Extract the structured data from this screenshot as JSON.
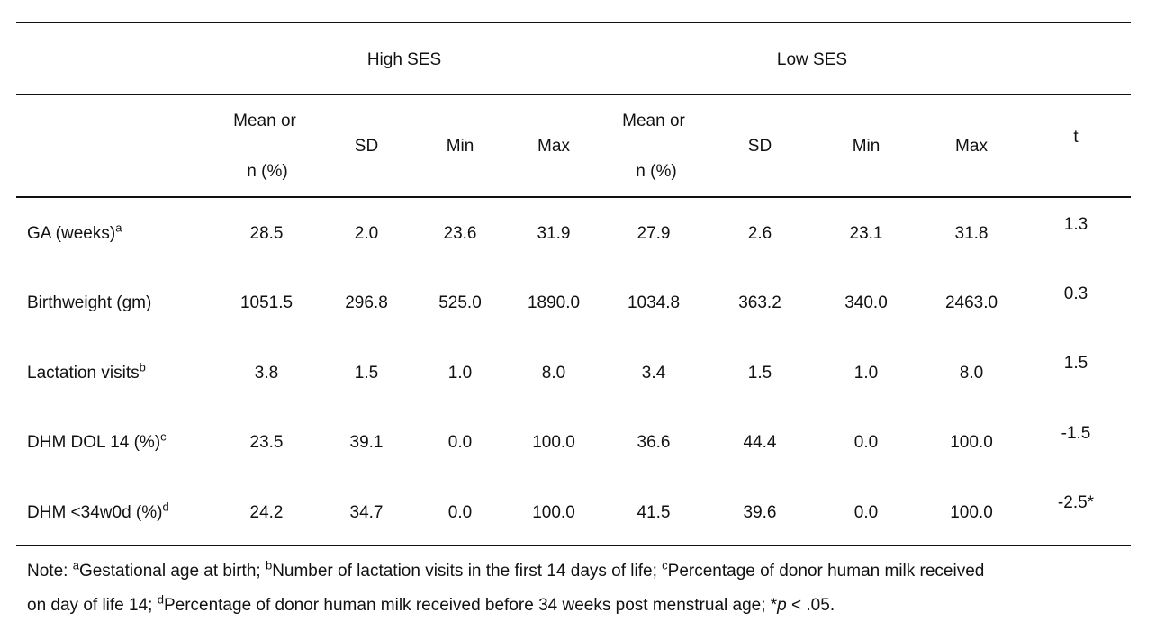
{
  "groups": {
    "high": "High SES",
    "low": "Low SES"
  },
  "subheaders": {
    "mean_line1": "Mean or",
    "mean_line2": "n (%)",
    "sd": "SD",
    "min": "Min",
    "max": "Max",
    "t": "t"
  },
  "rows": [
    {
      "label": "GA (weeks)",
      "sup": "a",
      "values": [
        "28.5",
        "2.0",
        "23.6",
        "31.9",
        "27.9",
        "2.6",
        "23.1",
        "31.8"
      ],
      "t": "1.3"
    },
    {
      "label": "Birthweight (gm)",
      "sup": "",
      "values": [
        "1051.5",
        "296.8",
        "525.0",
        "1890.0",
        "1034.8",
        "363.2",
        "340.0",
        "2463.0"
      ],
      "t": "0.3"
    },
    {
      "label": "Lactation visits",
      "sup": "b",
      "values": [
        "3.8",
        "1.5",
        "1.0",
        "8.0",
        "3.4",
        "1.5",
        "1.0",
        "8.0"
      ],
      "t": "1.5"
    },
    {
      "label": "DHM DOL 14 (%)",
      "sup": "c",
      "values": [
        "23.5",
        "39.1",
        "0.0",
        "100.0",
        "36.6",
        "44.4",
        "0.0",
        "100.0"
      ],
      "t": "-1.5"
    },
    {
      "label": "DHM <34w0d (%)",
      "sup": "d",
      "values": [
        "24.2",
        "34.7",
        "0.0",
        "100.0",
        "41.5",
        "39.6",
        "0.0",
        "100.0"
      ],
      "t": "-2.5*"
    }
  ],
  "note": {
    "prefix": "Note: ",
    "a_sup": "a",
    "a_text": "Gestational age at birth; ",
    "b_sup": "b",
    "b_text": "Number of lactation visits in the first 14 days of life; ",
    "c_sup": "c",
    "c_text": "Percentage of donor human milk received",
    "line2_text": "on day of life 14; ",
    "d_sup": "d",
    "d_text": "Percentage of donor human milk received before 34 weeks post menstrual age; *",
    "p": "p",
    "p_tail": " < .05."
  }
}
